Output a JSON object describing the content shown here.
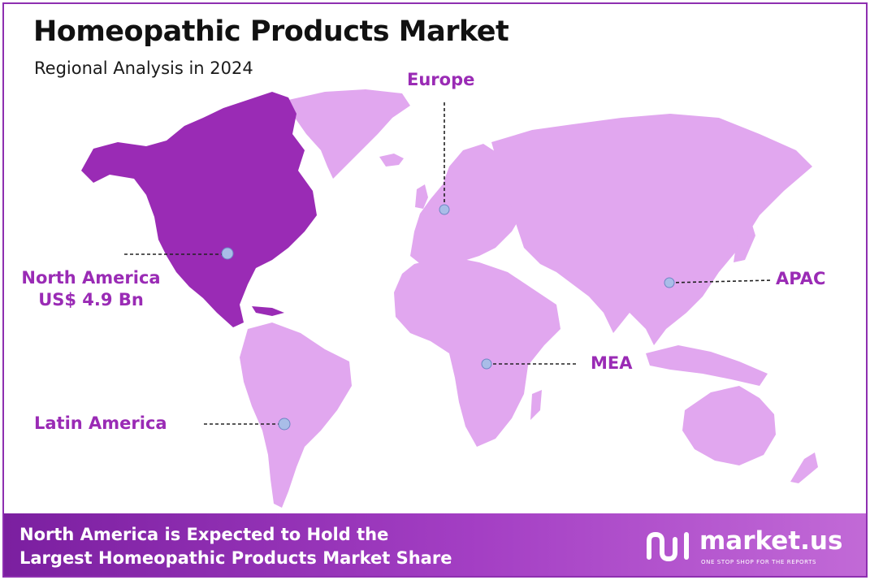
{
  "header": {
    "title": "Homeopathic Products Market",
    "subtitle": "Regional Analysis in 2024"
  },
  "regions": [
    {
      "id": "north-america",
      "name": "North America",
      "value": "US$ 4.9 Bn",
      "highlighted": true
    },
    {
      "id": "europe",
      "name": "Europe",
      "value": "",
      "highlighted": false
    },
    {
      "id": "apac",
      "name": "APAC",
      "value": "",
      "highlighted": false
    },
    {
      "id": "mea",
      "name": "MEA",
      "value": "",
      "highlighted": false
    },
    {
      "id": "latin-america",
      "name": "Latin America",
      "value": "",
      "highlighted": false
    }
  ],
  "footer": {
    "line1": "North America is Expected to Hold the",
    "line2": "Largest Homeopathic Products Market Share"
  },
  "brand": {
    "name": "market.us",
    "tagline": "ONE STOP SHOP FOR THE REPORTS"
  },
  "colors": {
    "highlight": "#9a2bb5",
    "land": "#e1a7ef",
    "marker": "#a9bde8",
    "label": "#9a2bb5"
  }
}
